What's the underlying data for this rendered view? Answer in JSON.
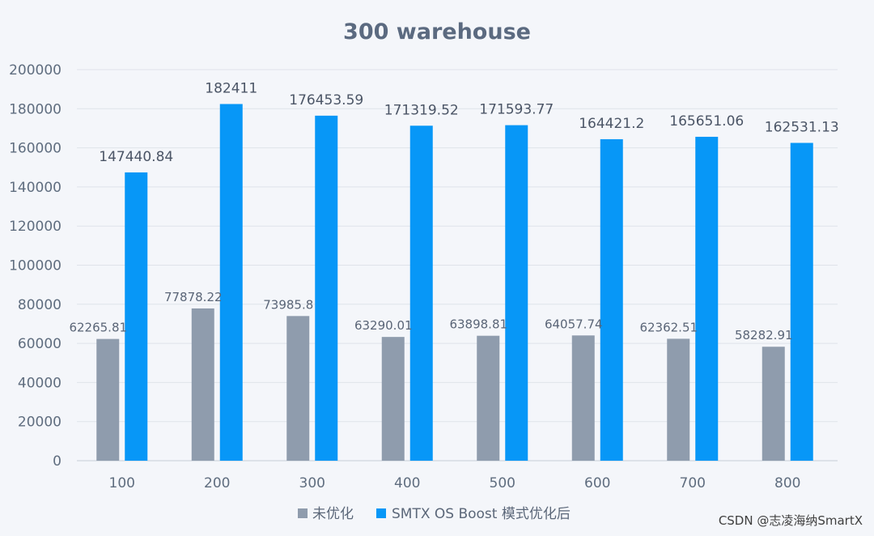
{
  "chart_data": {
    "type": "bar",
    "title": "300 warehouse",
    "xlabel": "",
    "ylabel": "",
    "categories": [
      "100",
      "200",
      "300",
      "400",
      "500",
      "600",
      "700",
      "800"
    ],
    "ylim": [
      0,
      200000
    ],
    "yticks": [
      0,
      20000,
      40000,
      60000,
      80000,
      100000,
      120000,
      140000,
      160000,
      180000,
      200000
    ],
    "grid": true,
    "legend_position": "bottom",
    "series": [
      {
        "name": "未优化",
        "color": "#8f9cad",
        "values": [
          62265.81,
          77878.22,
          73985.8,
          63290.01,
          63898.81,
          64057.74,
          62362.51,
          58282.91
        ],
        "labels": [
          "62265.81",
          "77878.22",
          "73985.8",
          "63290.01",
          "63898.81",
          "64057.74",
          "62362.51",
          "58282.91"
        ]
      },
      {
        "name": "SMTX OS Boost 模式优化后",
        "color": "#0797f7",
        "values": [
          147440.84,
          182411,
          176453.59,
          171319.52,
          171593.77,
          164421.2,
          165651.06,
          162531.13
        ],
        "labels": [
          "147440.84",
          "182411",
          "176453.59",
          "171319.52",
          "171593.77",
          "164421.2",
          "165651.06",
          "162531.13"
        ]
      }
    ]
  },
  "watermark": "CSDN @志凌海纳SmartX"
}
